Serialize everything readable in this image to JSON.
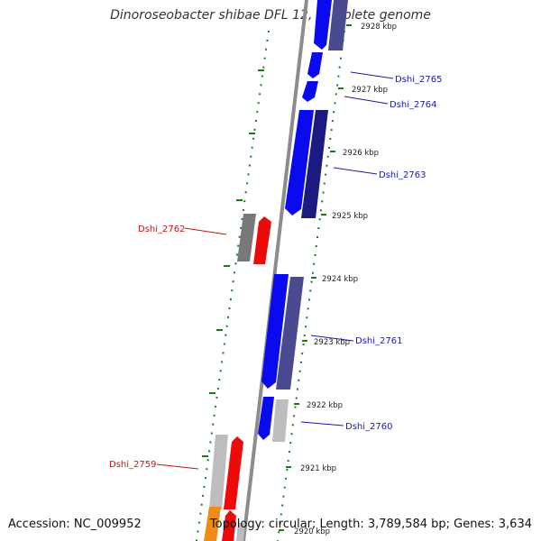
{
  "title": "Dinoroseobacter shibae DFL 12, complete genome",
  "footer": {
    "accession": "Accession: NC_009952",
    "stats": "Topology: circular; Length: 3,789,584 bp; Genes: 3,634"
  },
  "colors": {
    "blue": "#0a0aee",
    "navy": "#1a1a80",
    "slate": "#4a4a90",
    "red": "#ee0a0a",
    "gray": "#787878",
    "light_gray": "#bdbdbd",
    "orange": "#f08c14",
    "backbone": "#8c8c8c",
    "tick": "#1a7a1a",
    "blue_label": "#1a1aaa",
    "red_label": "#cc1111"
  },
  "ticks": [
    {
      "label": "2928 kbp"
    },
    {
      "label": "2927 kbp"
    },
    {
      "label": "2926 kbp"
    },
    {
      "label": "2925 kbp"
    },
    {
      "label": "2924 kbp"
    },
    {
      "label": "2923 kbp"
    },
    {
      "label": "2922 kbp"
    },
    {
      "label": "2921 kbp"
    },
    {
      "label": "2920 kbp"
    }
  ],
  "genes": [
    {
      "label": "Dshi_2765",
      "strand": "forward"
    },
    {
      "label": "Dshi_2764",
      "strand": "forward"
    },
    {
      "label": "Dshi_2763",
      "strand": "forward"
    },
    {
      "label": "Dshi_2762",
      "strand": "reverse"
    },
    {
      "label": "Dshi_2761",
      "strand": "forward"
    },
    {
      "label": "Dshi_2760",
      "strand": "forward"
    },
    {
      "label": "Dshi_2759",
      "strand": "reverse"
    }
  ]
}
